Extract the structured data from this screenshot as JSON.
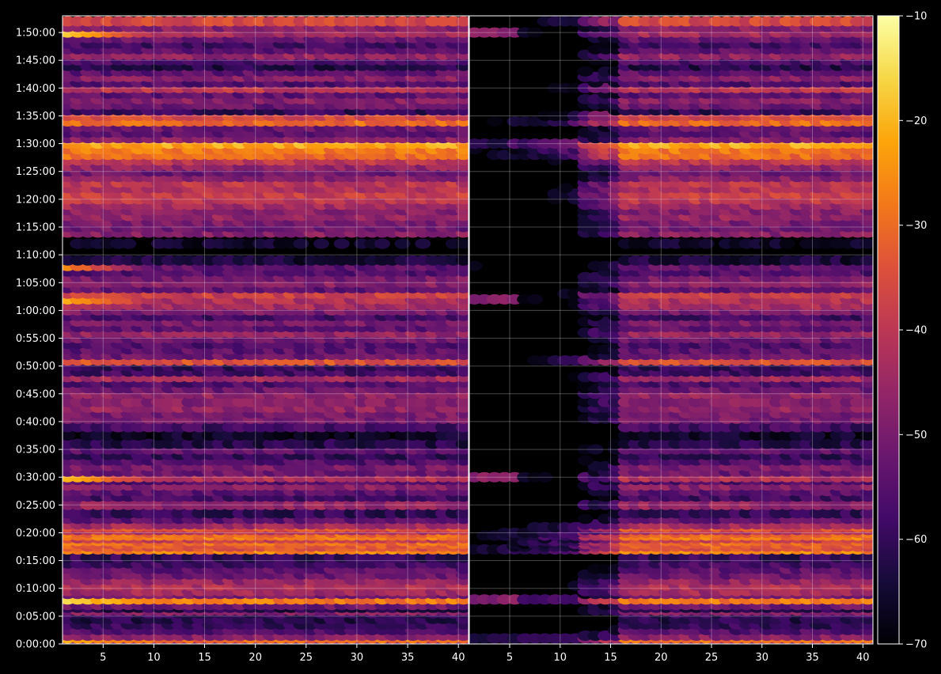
{
  "chart_data": {
    "type": "heatmap",
    "panels": [
      {
        "name": "",
        "x_range": [
          1,
          40
        ]
      },
      {
        "name": "",
        "x_range": [
          1,
          40
        ]
      }
    ],
    "xticks": [
      5,
      10,
      15,
      20,
      25,
      30,
      35,
      40
    ],
    "x_range": [
      1,
      40
    ],
    "y_range_seconds": [
      0,
      6780
    ],
    "yticks": [
      {
        "value": 0,
        "label": "0:00:00"
      },
      {
        "value": 300,
        "label": "0:05:00"
      },
      {
        "value": 600,
        "label": "0:10:00"
      },
      {
        "value": 900,
        "label": "0:15:00"
      },
      {
        "value": 1200,
        "label": "0:20:00"
      },
      {
        "value": 1500,
        "label": "0:25:00"
      },
      {
        "value": 1800,
        "label": "0:30:00"
      },
      {
        "value": 2100,
        "label": "0:35:00"
      },
      {
        "value": 2400,
        "label": "0:40:00"
      },
      {
        "value": 2700,
        "label": "0:45:00"
      },
      {
        "value": 3000,
        "label": "0:50:00"
      },
      {
        "value": 3300,
        "label": "0:55:00"
      },
      {
        "value": 3600,
        "label": "1:00:00"
      },
      {
        "value": 3900,
        "label": "1:05:00"
      },
      {
        "value": 4200,
        "label": "1:10:00"
      },
      {
        "value": 4500,
        "label": "1:15:00"
      },
      {
        "value": 4800,
        "label": "1:20:00"
      },
      {
        "value": 5100,
        "label": "1:25:00"
      },
      {
        "value": 5400,
        "label": "1:30:00"
      },
      {
        "value": 5700,
        "label": "1:35:00"
      },
      {
        "value": 6000,
        "label": "1:40:00"
      },
      {
        "value": 6300,
        "label": "1:45:00"
      },
      {
        "value": 6600,
        "label": "1:50:00"
      }
    ],
    "colorbar": {
      "colormap": "inferno",
      "range": [
        -70,
        -10
      ],
      "ticks": [
        {
          "value": -10,
          "label": "−10"
        },
        {
          "value": -20,
          "label": "−20"
        },
        {
          "value": -30,
          "label": "−30"
        },
        {
          "value": -40,
          "label": "−40"
        },
        {
          "value": -50,
          "label": "−50"
        },
        {
          "value": -60,
          "label": "−60"
        },
        {
          "value": -70,
          "label": "−70"
        }
      ]
    },
    "grid": true,
    "background": "#000000",
    "bands": [
      {
        "t": 30,
        "level": -52
      },
      {
        "t": 60,
        "level": -30,
        "edge": -22
      },
      {
        "t": 90,
        "level": -48
      },
      {
        "t": 150,
        "level": -56
      },
      {
        "t": 210,
        "level": -60
      },
      {
        "t": 270,
        "level": -62
      },
      {
        "t": 330,
        "level": -60
      },
      {
        "t": 360,
        "level": -48
      },
      {
        "t": 390,
        "level": -62
      },
      {
        "t": 420,
        "level": -52
      },
      {
        "t": 480,
        "level": -28,
        "edge": -16
      },
      {
        "t": 540,
        "level": -50
      },
      {
        "t": 570,
        "level": -44
      },
      {
        "t": 630,
        "level": -42
      },
      {
        "t": 690,
        "level": -46
      },
      {
        "t": 750,
        "level": -52
      },
      {
        "t": 810,
        "level": -54
      },
      {
        "t": 870,
        "level": -58
      },
      {
        "t": 930,
        "level": -60
      },
      {
        "t": 1020,
        "level": -26
      },
      {
        "t": 1050,
        "level": -34
      },
      {
        "t": 1080,
        "level": -32
      },
      {
        "t": 1110,
        "level": -30
      },
      {
        "t": 1140,
        "level": -38
      },
      {
        "t": 1170,
        "level": -28
      },
      {
        "t": 1200,
        "level": -30
      },
      {
        "t": 1230,
        "level": -42
      },
      {
        "t": 1260,
        "level": -34
      },
      {
        "t": 1290,
        "level": -44
      },
      {
        "t": 1350,
        "level": -54
      },
      {
        "t": 1410,
        "level": -60
      },
      {
        "t": 1500,
        "level": -46
      },
      {
        "t": 1590,
        "level": -58
      },
      {
        "t": 1650,
        "level": -54
      },
      {
        "t": 1710,
        "level": -48
      },
      {
        "t": 1770,
        "level": -56
      },
      {
        "t": 1800,
        "level": -42,
        "edge": -20
      },
      {
        "t": 1860,
        "level": -52
      },
      {
        "t": 1920,
        "level": -50
      },
      {
        "t": 1980,
        "level": -56
      },
      {
        "t": 2040,
        "level": -60
      },
      {
        "t": 2100,
        "level": -54
      },
      {
        "t": 2160,
        "level": -62
      },
      {
        "t": 2250,
        "level": -66
      },
      {
        "t": 2340,
        "level": -58
      },
      {
        "t": 2430,
        "level": -50
      },
      {
        "t": 2490,
        "level": -50
      },
      {
        "t": 2550,
        "level": -46
      },
      {
        "t": 2610,
        "level": -48
      },
      {
        "t": 2700,
        "level": -46
      },
      {
        "t": 2760,
        "level": -52
      },
      {
        "t": 2820,
        "level": -56
      },
      {
        "t": 2880,
        "level": -44
      },
      {
        "t": 2940,
        "level": -58
      },
      {
        "t": 3000,
        "level": -60
      },
      {
        "t": 3060,
        "level": -34
      },
      {
        "t": 3120,
        "level": -52
      },
      {
        "t": 3180,
        "level": -54
      },
      {
        "t": 3240,
        "level": -56
      },
      {
        "t": 3300,
        "level": -52
      },
      {
        "t": 3360,
        "level": -46
      },
      {
        "t": 3420,
        "level": -54
      },
      {
        "t": 3480,
        "level": -50
      },
      {
        "t": 3540,
        "level": -58
      },
      {
        "t": 3600,
        "level": -50
      },
      {
        "t": 3660,
        "level": -44
      },
      {
        "t": 3720,
        "level": -42,
        "edge": -22
      },
      {
        "t": 3780,
        "level": -38
      },
      {
        "t": 3840,
        "level": -54
      },
      {
        "t": 3900,
        "level": -48
      },
      {
        "t": 3960,
        "level": -50
      },
      {
        "t": 4020,
        "level": -56
      },
      {
        "t": 4080,
        "level": -54,
        "edge": -26
      },
      {
        "t": 4140,
        "level": -64
      },
      {
        "t": 4320,
        "level": -66
      },
      {
        "t": 4440,
        "level": -48
      },
      {
        "t": 4500,
        "level": -52
      },
      {
        "t": 4560,
        "level": -50
      },
      {
        "t": 4620,
        "level": -46
      },
      {
        "t": 4680,
        "level": -48
      },
      {
        "t": 4740,
        "level": -44
      },
      {
        "t": 4800,
        "level": -40
      },
      {
        "t": 4860,
        "level": -38
      },
      {
        "t": 4920,
        "level": -42
      },
      {
        "t": 4980,
        "level": -40
      },
      {
        "t": 5040,
        "level": -48
      },
      {
        "t": 5100,
        "level": -52
      },
      {
        "t": 5160,
        "level": -46
      },
      {
        "t": 5220,
        "level": -40
      },
      {
        "t": 5280,
        "level": -30
      },
      {
        "t": 5340,
        "level": -28
      },
      {
        "t": 5400,
        "level": -22
      },
      {
        "t": 5460,
        "level": -48
      },
      {
        "t": 5520,
        "level": -54
      },
      {
        "t": 5580,
        "level": -52
      },
      {
        "t": 5640,
        "level": -30
      },
      {
        "t": 5700,
        "level": -36
      },
      {
        "t": 5760,
        "level": -60
      },
      {
        "t": 5820,
        "level": -52
      },
      {
        "t": 5880,
        "level": -48
      },
      {
        "t": 5940,
        "level": -54
      },
      {
        "t": 6000,
        "level": -40
      },
      {
        "t": 6060,
        "level": -56
      },
      {
        "t": 6120,
        "level": -48
      },
      {
        "t": 6180,
        "level": -54
      },
      {
        "t": 6240,
        "level": -62
      },
      {
        "t": 6300,
        "level": -56
      },
      {
        "t": 6360,
        "level": -46
      },
      {
        "t": 6420,
        "level": -54
      },
      {
        "t": 6480,
        "level": -58
      },
      {
        "t": 6540,
        "level": -52
      },
      {
        "t": 6600,
        "level": -44,
        "edge": -18
      },
      {
        "t": 6660,
        "level": -48
      },
      {
        "t": 6720,
        "level": -36
      }
    ]
  }
}
